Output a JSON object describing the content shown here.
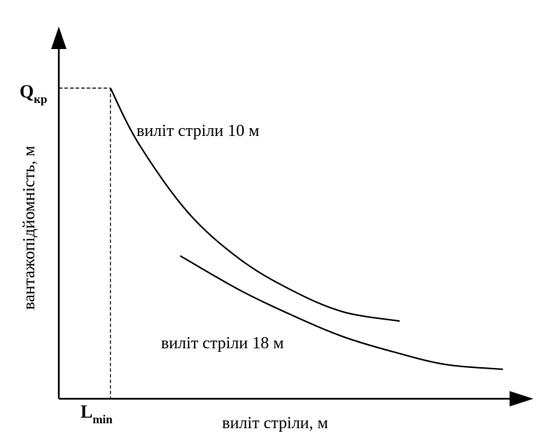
{
  "chart_data": {
    "type": "line",
    "xlabel": "виліт стріли, м",
    "ylabel": "вантажопідйомність, м",
    "marks": {
      "y_main": "Q",
      "y_sub": "кр",
      "x_main": "L",
      "x_sub": "min"
    },
    "series": [
      {
        "name": "виліт стріли 10 м",
        "points": [
          [
            1.0,
            1.0
          ],
          [
            1.55,
            0.82
          ],
          [
            2.5,
            0.6
          ],
          [
            3.5,
            0.45
          ],
          [
            4.5,
            0.35
          ],
          [
            5.5,
            0.28
          ],
          [
            6.6,
            0.25
          ]
        ]
      },
      {
        "name": "виліт стріли 18 м",
        "points": [
          [
            2.35,
            0.46
          ],
          [
            3.5,
            0.35
          ],
          [
            4.5,
            0.27
          ],
          [
            5.5,
            0.2
          ],
          [
            6.5,
            0.15
          ],
          [
            7.5,
            0.11
          ],
          [
            8.6,
            0.095
          ]
        ]
      }
    ],
    "guides": {
      "x": 1.0,
      "y": 1.0
    },
    "xlim": [
      0,
      9
    ],
    "ylim": [
      0,
      1.2
    ],
    "grid": false
  }
}
